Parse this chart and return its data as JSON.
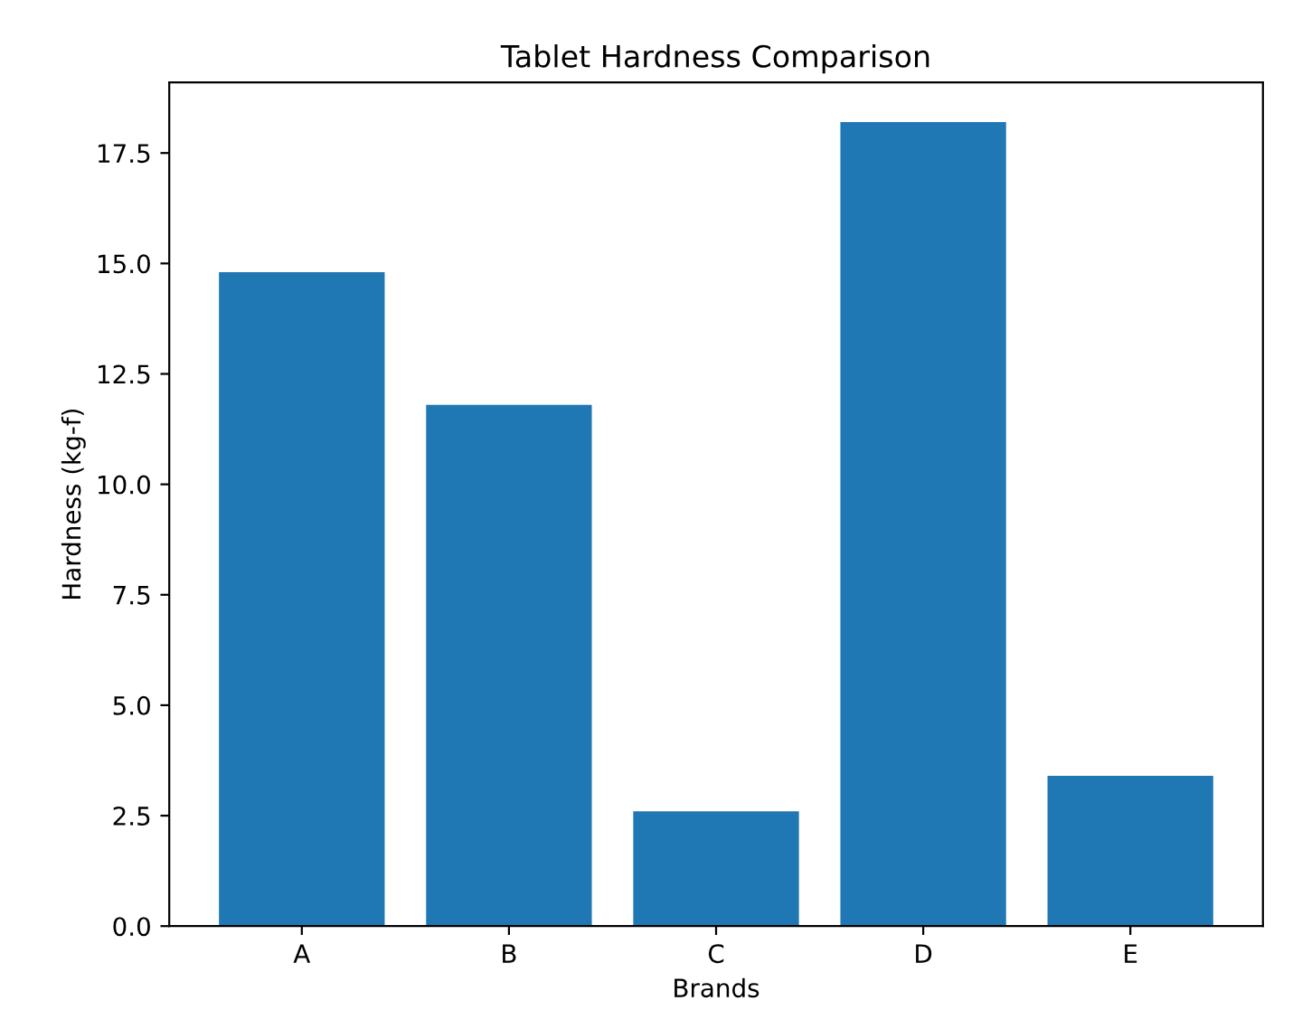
{
  "chart_data": {
    "type": "bar",
    "title": "Tablet Hardness Comparison",
    "xlabel": "Brands",
    "ylabel": "Hardness (kg-f)",
    "categories": [
      "A",
      "B",
      "C",
      "D",
      "E"
    ],
    "values": [
      14.8,
      11.8,
      2.6,
      18.2,
      3.4
    ],
    "color": "#1f77b4",
    "ylim": [
      0,
      19.1
    ],
    "yticks": [
      {
        "value": 0,
        "label": "0.0"
      },
      {
        "value": 2.5,
        "label": "2.5"
      },
      {
        "value": 5,
        "label": "5.0"
      },
      {
        "value": 7.5,
        "label": "7.5"
      },
      {
        "value": 10,
        "label": "10.0"
      },
      {
        "value": 12.5,
        "label": "12.5"
      },
      {
        "value": 15,
        "label": "15.0"
      },
      {
        "value": 17.5,
        "label": "17.5"
      }
    ],
    "grid": false
  }
}
